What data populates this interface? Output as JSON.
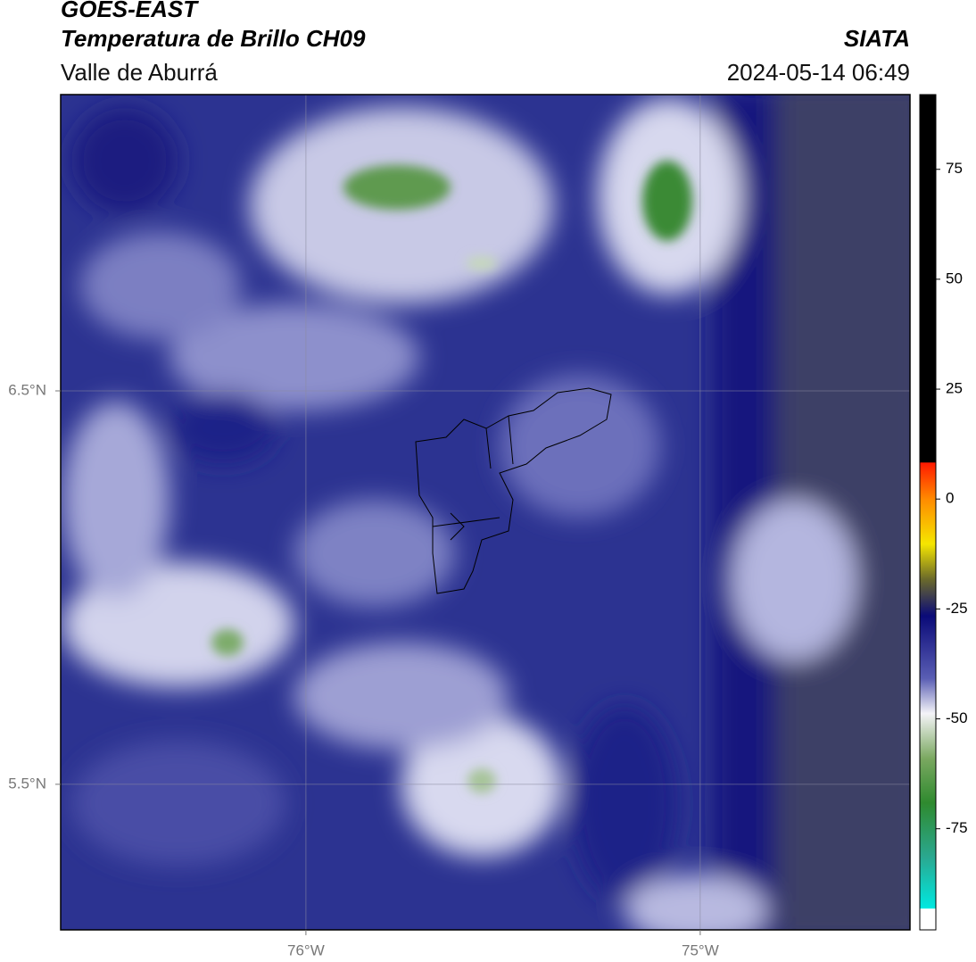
{
  "header": {
    "title": "GOES-EAST",
    "subtitle": "Temperatura de Brillo CH09",
    "source": "SIATA",
    "region": "Valle de Aburrá",
    "timestamp": "2024-05-14 06:49"
  },
  "map": {
    "xlim": [
      -76.622,
      -74.468
    ],
    "ylim": [
      5.13,
      7.253
    ],
    "xticks": [
      {
        "value": -76,
        "label": "76°W"
      },
      {
        "value": -75,
        "label": "75°W"
      }
    ],
    "yticks": [
      {
        "value": 6.5,
        "label": "6.5°N"
      },
      {
        "value": 5.5,
        "label": "5.5°N"
      }
    ]
  },
  "colorbar": {
    "lim": [
      -98,
      92
    ],
    "ticks": [
      75,
      50,
      25,
      0,
      -25,
      -50,
      -75
    ]
  }
}
